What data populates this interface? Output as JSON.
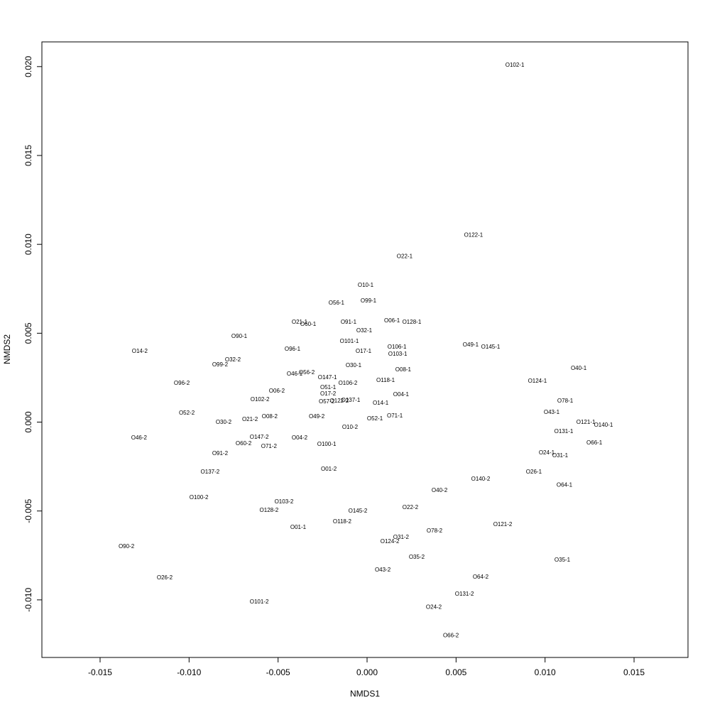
{
  "chart_data": {
    "type": "scatter",
    "xlabel": "NMDS1",
    "ylabel": "NMDS2",
    "xlim": [
      -0.01827,
      0.01803
    ],
    "ylim": [
      -0.01324,
      0.02139
    ],
    "xticks": [
      -0.015,
      {
        "value": -0.01,
        "label": "-0.010"
      },
      -0.005,
      {
        "value": 0,
        "label": "0.000"
      },
      0.005,
      {
        "value": 0.01,
        "label": "0.010"
      },
      0.015
    ],
    "yticks": [
      {
        "value": -0.01,
        "label": "-0.010"
      },
      -0.005,
      {
        "value": 0,
        "label": "0.000"
      },
      0.005,
      {
        "value": 0.01,
        "label": "0.010"
      },
      0.015,
      {
        "value": 0.02,
        "label": "0.020"
      }
    ],
    "labels": [
      "O102-1",
      "O122-1",
      "O22-1",
      "O10-1",
      "O99-1",
      "O56-1",
      "O21-1",
      "O60-1",
      "O91-1",
      "O06-1",
      "O128-1",
      "O32-1",
      "O90-1",
      "O101-1",
      "O106-1",
      "O49-1",
      "O145-1",
      "O14-2",
      "O96-1",
      "O17-1",
      "O103-1",
      "O32-2",
      "O99-2",
      "O30-1",
      "O40-1",
      "O08-1",
      "O46-1",
      "O56-2",
      "O147-1",
      "O118-1",
      "O124-1",
      "O96-2",
      "O106-2",
      "O51-1",
      "O06-2",
      "O04-1",
      "O17-2",
      "O102-2",
      "O57-2",
      "O122-2",
      "O137-1",
      "O78-1",
      "O14-1",
      "O52-2",
      "O43-1",
      "O71-1",
      "O08-2",
      "O49-2",
      "O21-2",
      "O52-1",
      "O30-2",
      "O121-1",
      "O140-1",
      "O10-2",
      "O131-1",
      "O46-2",
      "O147-2",
      "O04-2",
      "O66-1",
      "O60-2",
      "O100-1",
      "O71-2",
      "O91-2",
      "O24-1",
      "O31-1",
      "O01-2",
      "O26-1",
      "O137-2",
      "O140-2",
      "O64-1",
      "O40-2",
      "O100-2",
      "O103-2",
      "O22-2",
      "O128-2",
      "O145-2",
      "O118-2",
      "O121-2",
      "O01-1",
      "O78-2",
      "O31-2",
      "O124-2",
      "O90-2",
      "O35-2",
      "O35-1",
      "O43-2",
      "O64-2",
      "O26-2",
      "O131-2",
      "O101-2",
      "O24-2",
      "O66-2"
    ],
    "x": [
      0.0083,
      0.00598,
      0.00211,
      -8e-05,
      8e-05,
      -0.00172,
      -0.00379,
      -0.00331,
      -0.00104,
      0.0014,
      0.00251,
      -0.00016,
      -0.00718,
      -0.001,
      0.00168,
      0.00582,
      0.00694,
      -0.01277,
      -0.00419,
      -0.0002,
      0.00172,
      -0.00754,
      -0.00826,
      -0.00076,
      0.01189,
      0.00203,
      -0.00407,
      -0.00339,
      -0.00223,
      0.00104,
      0.00957,
      -0.01041,
      -0.00108,
      -0.00219,
      -0.00507,
      0.00191,
      -0.00219,
      -0.00602,
      -0.00227,
      -0.00156,
      -0.00092,
      0.01113,
      0.00076,
      -0.01013,
      0.01037,
      0.00156,
      -0.00547,
      -0.00283,
      -0.00658,
      0.00044,
      -0.00806,
      0.01229,
      0.01328,
      -0.00096,
      0.01105,
      -0.01281,
      -0.00606,
      -0.00379,
      0.01277,
      -0.00694,
      -0.00227,
      -0.00551,
      -0.00826,
      0.01009,
      0.01085,
      -0.00215,
      0.00937,
      -0.00882,
      0.00638,
      0.01109,
      0.00407,
      -0.00945,
      -0.00467,
      0.00243,
      -0.00551,
      -0.00052,
      -0.0014,
      0.00762,
      -0.00387,
      0.00379,
      0.00191,
      0.00128,
      -0.01352,
      0.00279,
      0.01097,
      0.00088,
      0.00638,
      -0.01137,
      0.00547,
      -0.00606,
      0.00375,
      0.00471
    ],
    "y": [
      0.02007,
      0.01051,
      0.00932,
      0.00769,
      0.00681,
      0.00669,
      0.00561,
      0.00549,
      0.00561,
      0.00569,
      0.00561,
      0.00513,
      0.00481,
      0.00453,
      0.00421,
      0.00433,
      0.00421,
      0.00397,
      0.00409,
      0.00397,
      0.00381,
      0.0035,
      0.00322,
      0.00318,
      0.00302,
      0.00294,
      0.0027,
      0.00278,
      0.0025,
      0.00234,
      0.0023,
      0.00218,
      0.00218,
      0.00194,
      0.00174,
      0.00154,
      0.00158,
      0.00126,
      0.00114,
      0.00118,
      0.00122,
      0.00118,
      0.00106,
      0.0005,
      0.00054,
      0.00034,
      0.0003,
      0.0003,
      0.00014,
      0.00018,
      -2e-05,
      -2e-05,
      -0.00018,
      -0.0003,
      -0.00054,
      -0.0009,
      -0.00086,
      -0.0009,
      -0.00118,
      -0.00122,
      -0.00126,
      -0.00138,
      -0.00178,
      -0.00174,
      -0.0019,
      -0.00266,
      -0.00282,
      -0.00282,
      -0.00322,
      -0.00354,
      -0.00385,
      -0.00425,
      -0.00449,
      -0.00481,
      -0.00497,
      -0.00501,
      -0.00561,
      -0.00577,
      -0.00593,
      -0.00613,
      -0.00649,
      -0.00673,
      -0.00701,
      -0.00761,
      -0.00777,
      -0.00833,
      -0.00873,
      -0.00877,
      -0.00969,
      -0.01013,
      -0.01041,
      -0.01201
    ]
  }
}
